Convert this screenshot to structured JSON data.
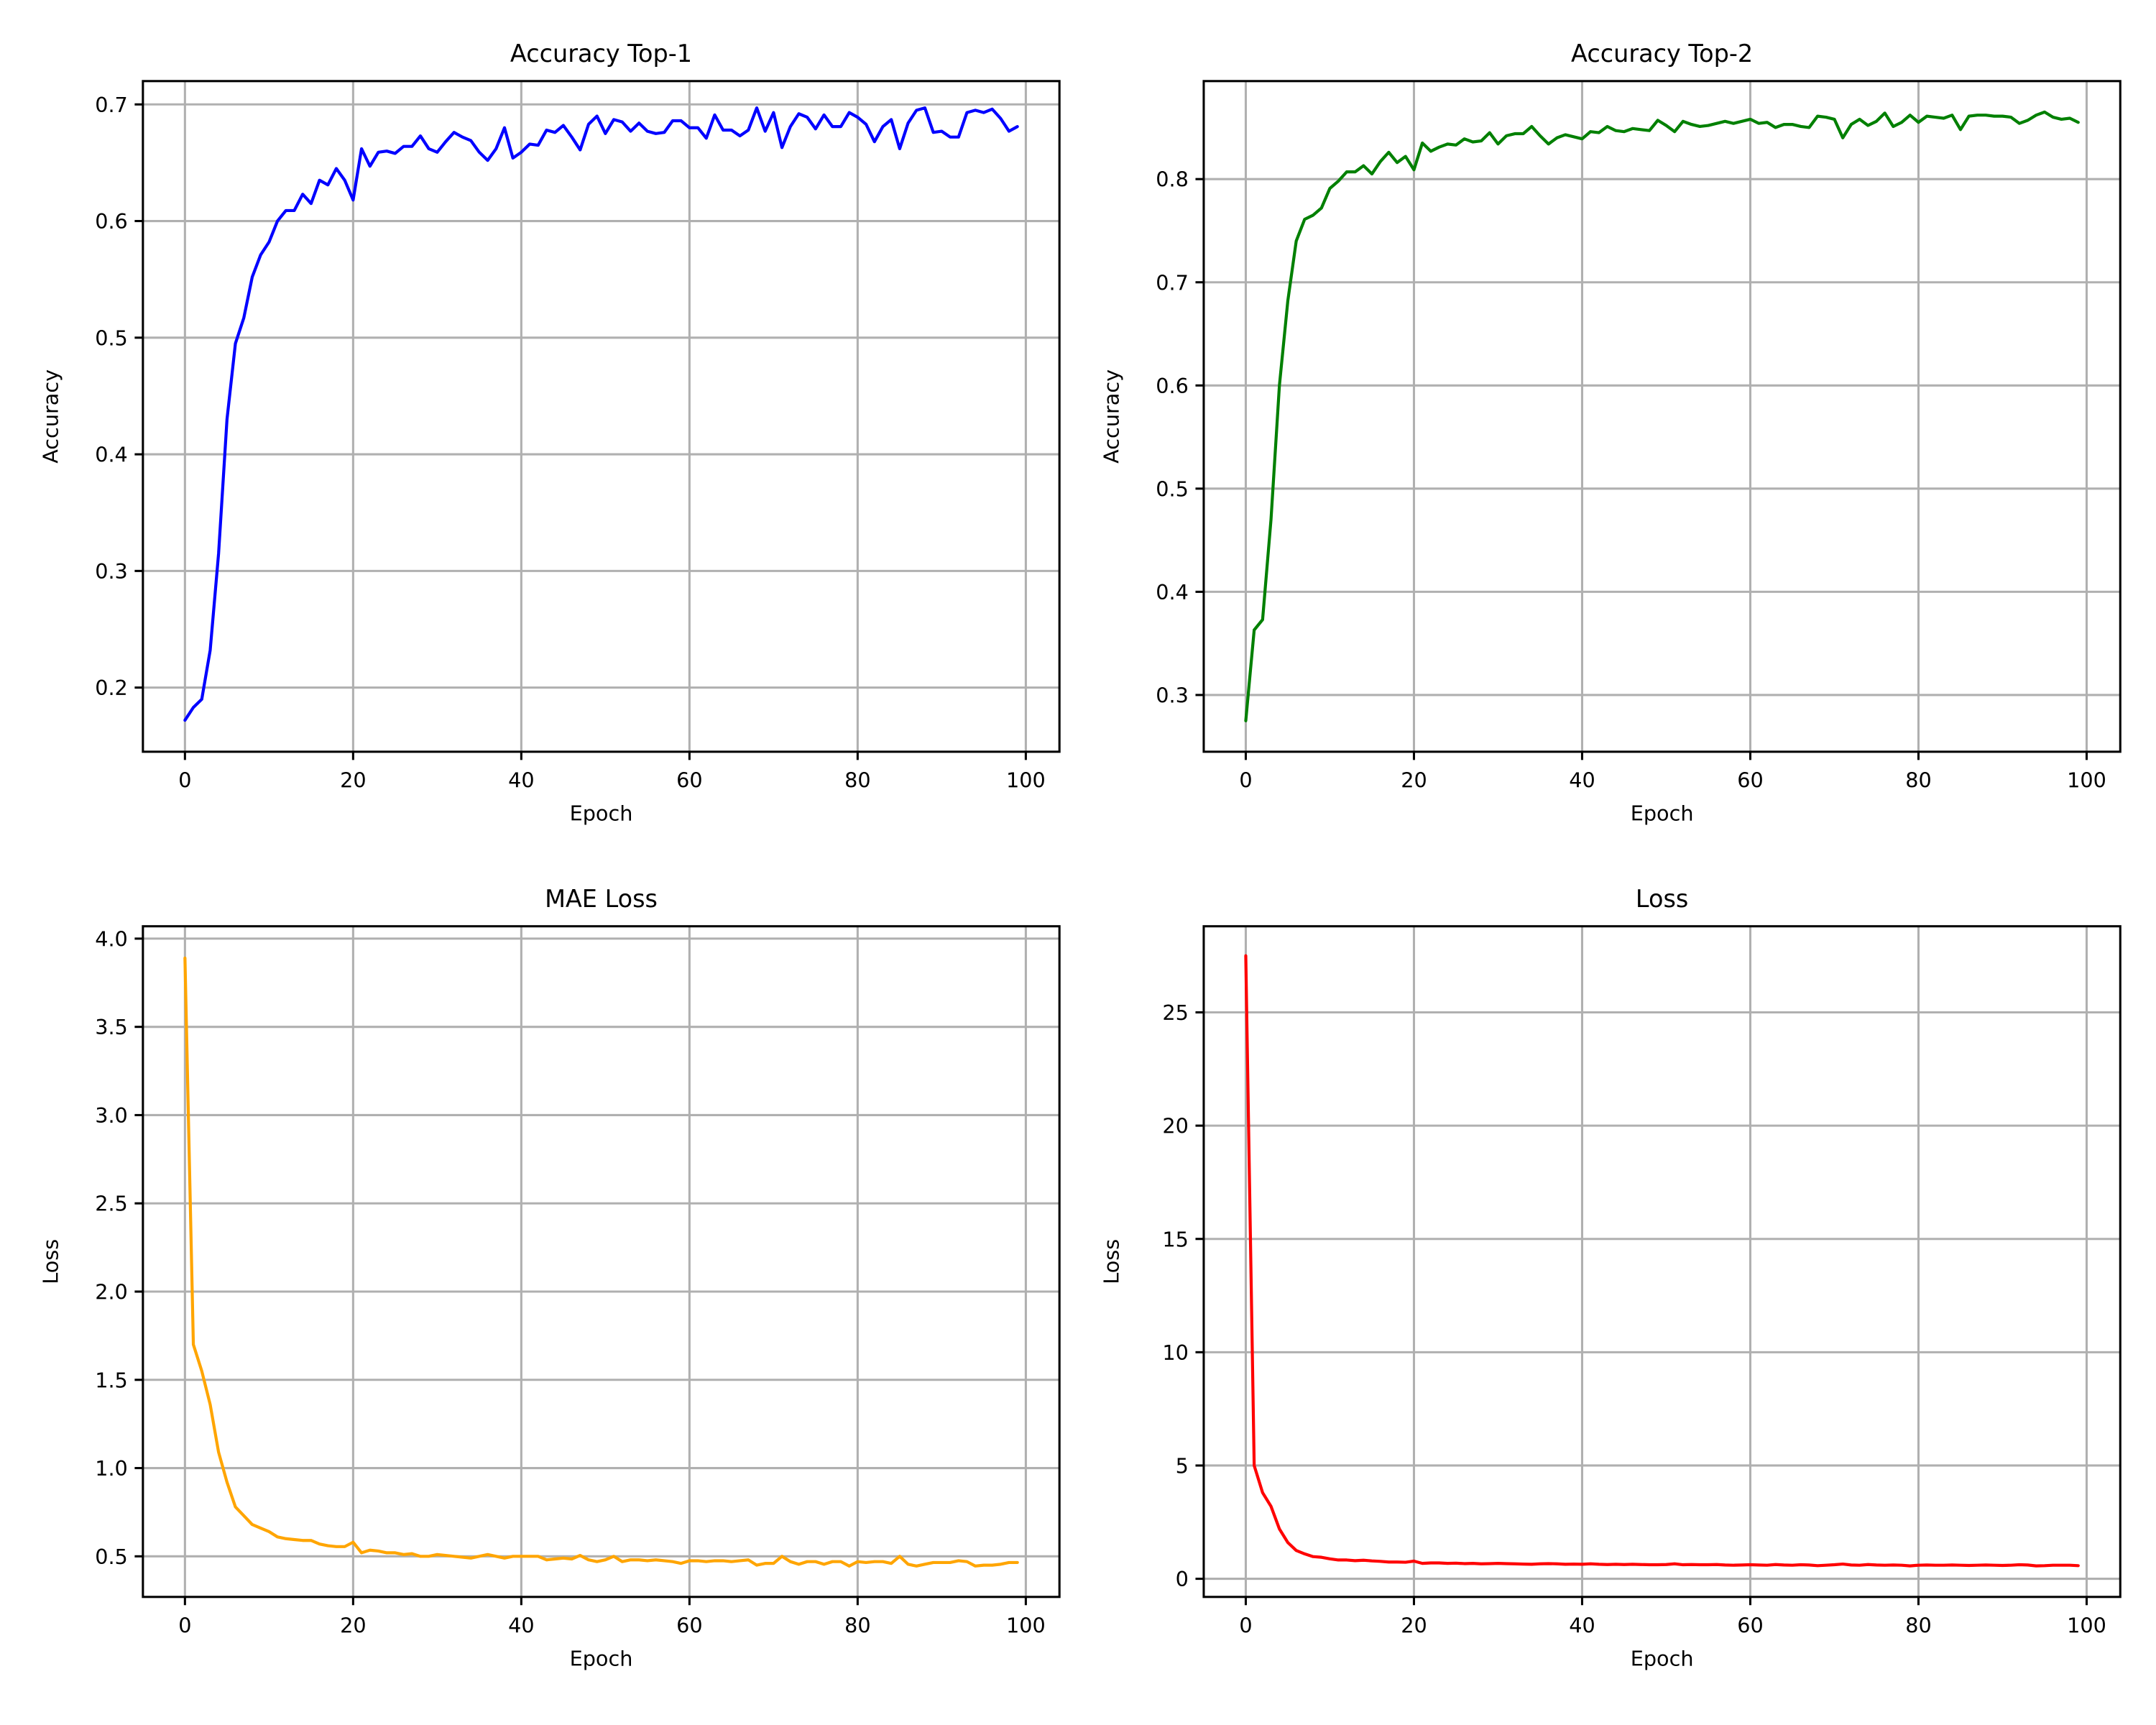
{
  "figure": {
    "background": "#ffffff"
  },
  "chart_data": [
    {
      "type": "line",
      "title": "Accuracy Top-1",
      "xlabel": "Epoch",
      "ylabel": "Accuracy",
      "xlim": [
        -5,
        104
      ],
      "ylim": [
        0.145,
        0.72
      ],
      "xticks": [
        0,
        20,
        40,
        60,
        80,
        100
      ],
      "yticks": [
        0.2,
        0.3,
        0.4,
        0.5,
        0.6,
        0.7
      ],
      "grid": true,
      "series": [
        {
          "color": "#0000ff",
          "values": [
            0.172,
            0.183,
            0.19,
            0.232,
            0.315,
            0.43,
            0.495,
            0.517,
            0.552,
            0.571,
            0.582,
            0.6,
            0.609,
            0.609,
            0.623,
            0.615,
            0.635,
            0.631,
            0.645,
            0.635,
            0.618,
            0.662,
            0.647,
            0.659,
            0.66,
            0.658,
            0.664,
            0.664,
            0.673,
            0.662,
            0.659,
            0.668,
            0.676,
            0.672,
            0.669,
            0.659,
            0.652,
            0.662,
            0.68,
            0.654,
            0.659,
            0.666,
            0.665,
            0.678,
            0.676,
            0.682,
            0.672,
            0.661,
            0.683,
            0.69,
            0.675,
            0.687,
            0.685,
            0.677,
            0.684,
            0.677,
            0.675,
            0.676,
            0.686,
            0.686,
            0.68,
            0.68,
            0.671,
            0.691,
            0.678,
            0.678,
            0.673,
            0.678,
            0.697,
            0.677,
            0.693,
            0.663,
            0.681,
            0.692,
            0.689,
            0.679,
            0.691,
            0.681,
            0.681,
            0.693,
            0.689,
            0.683,
            0.668,
            0.681,
            0.687,
            0.662,
            0.684,
            0.695,
            0.697,
            0.676,
            0.677,
            0.672,
            0.672,
            0.693,
            0.695,
            0.693,
            0.696,
            0.688,
            0.677,
            0.681
          ]
        }
      ]
    },
    {
      "type": "line",
      "title": "Accuracy Top-2",
      "xlabel": "Epoch",
      "ylabel": "Accuracy",
      "xlim": [
        -5,
        104
      ],
      "ylim": [
        0.245,
        0.895
      ],
      "xticks": [
        0,
        20,
        40,
        60,
        80,
        100
      ],
      "yticks": [
        0.3,
        0.4,
        0.5,
        0.6,
        0.7,
        0.8
      ],
      "grid": true,
      "series": [
        {
          "color": "#008000",
          "values": [
            0.275,
            0.363,
            0.373,
            0.47,
            0.6,
            0.682,
            0.74,
            0.761,
            0.765,
            0.772,
            0.791,
            0.798,
            0.807,
            0.807,
            0.813,
            0.805,
            0.817,
            0.826,
            0.816,
            0.822,
            0.809,
            0.835,
            0.827,
            0.831,
            0.834,
            0.833,
            0.839,
            0.836,
            0.837,
            0.845,
            0.834,
            0.842,
            0.844,
            0.844,
            0.851,
            0.842,
            0.834,
            0.84,
            0.843,
            0.841,
            0.839,
            0.846,
            0.845,
            0.851,
            0.847,
            0.846,
            0.849,
            0.848,
            0.847,
            0.857,
            0.852,
            0.846,
            0.856,
            0.853,
            0.851,
            0.852,
            0.854,
            0.856,
            0.854,
            0.856,
            0.858,
            0.854,
            0.855,
            0.85,
            0.853,
            0.853,
            0.851,
            0.85,
            0.861,
            0.86,
            0.858,
            0.84,
            0.853,
            0.858,
            0.852,
            0.856,
            0.864,
            0.851,
            0.855,
            0.862,
            0.855,
            0.861,
            0.86,
            0.859,
            0.862,
            0.848,
            0.861,
            0.862,
            0.862,
            0.861,
            0.861,
            0.86,
            0.854,
            0.857,
            0.862,
            0.865,
            0.86,
            0.858,
            0.859,
            0.855
          ]
        }
      ]
    },
    {
      "type": "line",
      "title": "MAE Loss",
      "xlabel": "Epoch",
      "ylabel": "Loss",
      "xlim": [
        -5,
        104
      ],
      "ylim": [
        0.27,
        4.07
      ],
      "xticks": [
        0,
        20,
        40,
        60,
        80,
        100
      ],
      "yticks": [
        0.5,
        1.0,
        1.5,
        2.0,
        2.5,
        3.0,
        3.5,
        4.0
      ],
      "grid": true,
      "series": [
        {
          "color": "#ffa500",
          "values": [
            3.89,
            1.7,
            1.55,
            1.36,
            1.09,
            0.92,
            0.78,
            0.73,
            0.68,
            0.66,
            0.64,
            0.61,
            0.6,
            0.595,
            0.59,
            0.59,
            0.57,
            0.56,
            0.555,
            0.555,
            0.58,
            0.52,
            0.535,
            0.53,
            0.52,
            0.52,
            0.51,
            0.515,
            0.5,
            0.5,
            0.51,
            0.505,
            0.5,
            0.495,
            0.49,
            0.5,
            0.51,
            0.5,
            0.49,
            0.5,
            0.5,
            0.5,
            0.5,
            0.48,
            0.485,
            0.49,
            0.485,
            0.505,
            0.48,
            0.47,
            0.48,
            0.5,
            0.47,
            0.48,
            0.48,
            0.475,
            0.48,
            0.475,
            0.47,
            0.46,
            0.475,
            0.475,
            0.47,
            0.475,
            0.475,
            0.47,
            0.475,
            0.48,
            0.45,
            0.46,
            0.46,
            0.5,
            0.47,
            0.455,
            0.47,
            0.47,
            0.455,
            0.47,
            0.47,
            0.445,
            0.47,
            0.465,
            0.47,
            0.47,
            0.46,
            0.5,
            0.455,
            0.445,
            0.455,
            0.465,
            0.465,
            0.465,
            0.475,
            0.47,
            0.445,
            0.45,
            0.45,
            0.455,
            0.465,
            0.465
          ]
        }
      ]
    },
    {
      "type": "line",
      "title": "Loss",
      "xlabel": "Epoch",
      "ylabel": "Loss",
      "xlim": [
        -5,
        104
      ],
      "ylim": [
        -0.8,
        28.8
      ],
      "xticks": [
        0,
        20,
        40,
        60,
        80,
        100
      ],
      "yticks": [
        0,
        5,
        10,
        15,
        20,
        25
      ],
      "grid": true,
      "series": [
        {
          "color": "#ff0000",
          "values": [
            27.5,
            5.0,
            3.8,
            3.2,
            2.2,
            1.6,
            1.25,
            1.1,
            0.98,
            0.95,
            0.88,
            0.83,
            0.83,
            0.8,
            0.82,
            0.79,
            0.77,
            0.74,
            0.74,
            0.73,
            0.78,
            0.68,
            0.7,
            0.7,
            0.68,
            0.69,
            0.67,
            0.68,
            0.66,
            0.67,
            0.68,
            0.67,
            0.66,
            0.65,
            0.64,
            0.66,
            0.67,
            0.66,
            0.64,
            0.65,
            0.64,
            0.66,
            0.64,
            0.63,
            0.64,
            0.63,
            0.64,
            0.63,
            0.62,
            0.62,
            0.63,
            0.66,
            0.62,
            0.63,
            0.62,
            0.62,
            0.63,
            0.61,
            0.6,
            0.61,
            0.62,
            0.61,
            0.6,
            0.63,
            0.61,
            0.6,
            0.62,
            0.61,
            0.58,
            0.6,
            0.62,
            0.65,
            0.61,
            0.6,
            0.63,
            0.61,
            0.6,
            0.61,
            0.6,
            0.57,
            0.6,
            0.61,
            0.6,
            0.6,
            0.61,
            0.6,
            0.59,
            0.6,
            0.61,
            0.6,
            0.59,
            0.6,
            0.62,
            0.61,
            0.57,
            0.58,
            0.6,
            0.6,
            0.6,
            0.58
          ]
        }
      ]
    }
  ]
}
